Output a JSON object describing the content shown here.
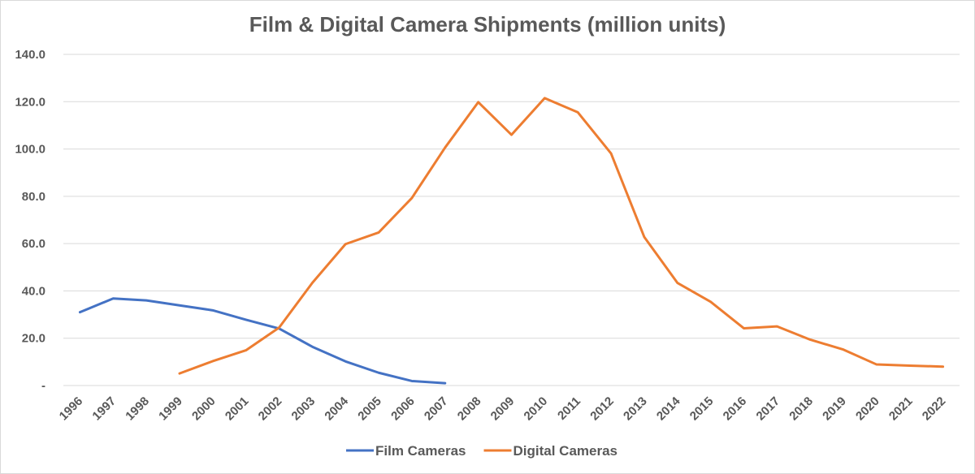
{
  "chart_data": {
    "type": "line",
    "title": "Film & Digital Camera Shipments (million units)",
    "xlabel": "",
    "ylabel": "",
    "categories": [
      "1996",
      "1997",
      "1998",
      "1999",
      "2000",
      "2001",
      "2002",
      "2003",
      "2004",
      "2005",
      "2006",
      "2007",
      "2008",
      "2009",
      "2010",
      "2011",
      "2012",
      "2013",
      "2014",
      "2015",
      "2016",
      "2017",
      "2018",
      "2019",
      "2020",
      "2021",
      "2022"
    ],
    "ylim": [
      0,
      140
    ],
    "yticks": [
      0,
      20,
      40,
      60,
      80,
      100,
      120,
      140
    ],
    "ytick_labels": [
      "-",
      "20.0",
      "40.0",
      "60.0",
      "80.0",
      "100.0",
      "120.0",
      "140.0"
    ],
    "grid": true,
    "legend_position": "bottom",
    "series": [
      {
        "name": "Film Cameras",
        "color": "#4472c4",
        "values": [
          31.0,
          36.8,
          36.0,
          33.9,
          31.8,
          27.8,
          24.1,
          16.4,
          10.2,
          5.4,
          1.9,
          1.0,
          null,
          null,
          null,
          null,
          null,
          null,
          null,
          null,
          null,
          null,
          null,
          null,
          null,
          null,
          null
        ]
      },
      {
        "name": "Digital Cameras",
        "color": "#ed7d31",
        "values": [
          null,
          null,
          null,
          5.1,
          10.3,
          14.9,
          24.5,
          43.4,
          59.8,
          64.7,
          79.3,
          100.6,
          119.8,
          106.0,
          121.5,
          115.5,
          98.1,
          62.8,
          43.4,
          35.4,
          24.2,
          25.0,
          19.4,
          15.2,
          8.9,
          8.4,
          8.0
        ]
      }
    ]
  }
}
